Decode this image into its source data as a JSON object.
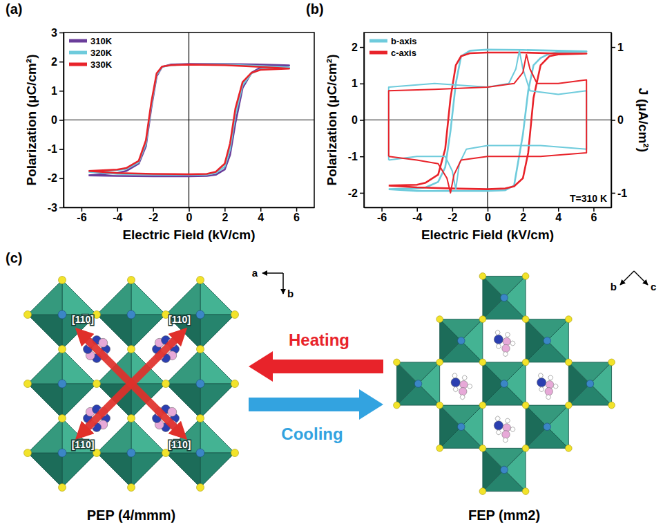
{
  "chart_data": [
    {
      "type": "line",
      "panel_label": "(a)",
      "x_label": "Electric Field (kV/cm)",
      "y_label": "Polarization (μC/cm²)",
      "xlim": [
        -7,
        7
      ],
      "xticks": [
        -6,
        -4,
        -2,
        0,
        2,
        4,
        6
      ],
      "ylim": [
        -3,
        3
      ],
      "yticks": [
        -3,
        -2,
        -1,
        0,
        1,
        2,
        3
      ],
      "legend": "upper left",
      "x": [
        -5.6,
        -4,
        -2,
        0,
        1,
        1.5,
        2,
        2.3,
        2.6,
        3,
        3.5,
        4,
        5.6,
        4,
        2,
        0,
        -1,
        -1.5,
        -1.8,
        -2.1,
        -2.4,
        -2.8,
        -3.5,
        -4,
        -5.6
      ],
      "series": [
        {
          "name": "310K",
          "color": "#6a3d9a",
          "values": [
            -1.9,
            -1.92,
            -1.93,
            -1.93,
            -1.92,
            -1.88,
            -1.7,
            -1.2,
            -0.1,
            1.1,
            1.62,
            1.8,
            1.87,
            1.9,
            1.92,
            1.92,
            1.9,
            1.82,
            1.5,
            0.4,
            -0.9,
            -1.5,
            -1.75,
            -1.82,
            -1.9
          ]
        },
        {
          "name": "320K",
          "color": "#6ecbdc",
          "values": [
            -1.78,
            -1.85,
            -1.87,
            -1.88,
            -1.87,
            -1.82,
            -1.6,
            -1.0,
            0.2,
            1.2,
            1.6,
            1.74,
            1.8,
            1.85,
            1.9,
            1.9,
            1.88,
            1.82,
            1.55,
            0.5,
            -0.8,
            -1.45,
            -1.68,
            -1.72,
            -1.78
          ]
        },
        {
          "name": "330K",
          "color": "#e8232a",
          "values": [
            -1.75,
            -1.82,
            -1.85,
            -1.86,
            -1.85,
            -1.78,
            -1.5,
            -0.8,
            0.4,
            1.3,
            1.62,
            1.72,
            1.76,
            1.82,
            1.88,
            1.9,
            1.88,
            1.83,
            1.6,
            0.6,
            -0.7,
            -1.4,
            -1.65,
            -1.7,
            -1.75
          ]
        }
      ]
    },
    {
      "type": "line",
      "panel_label": "(b)",
      "x_label": "Electric Field (kV/cm)",
      "y_label": "Polarization (μC/cm²)",
      "y2_label": "J (μA/cm²)",
      "annotation": "T=310 K",
      "xlim": [
        -7,
        7
      ],
      "xticks": [
        -6,
        -4,
        -2,
        0,
        2,
        4,
        6
      ],
      "ylim": [
        -2.4,
        2.4
      ],
      "yticks": [
        -2,
        -1,
        0,
        1,
        2
      ],
      "y2lim": [
        -1.2,
        1.2
      ],
      "y2ticks": [
        -1,
        0,
        1
      ],
      "legend": "upper left",
      "series": [
        {
          "name": "b-axis",
          "color": "#6ecbdc",
          "x": [
            -5.6,
            -4,
            -2,
            0,
            1,
            1.5,
            2,
            2.3,
            2.6,
            3,
            3.5,
            4,
            5.6,
            4,
            2,
            0,
            -1,
            -1.5,
            -1.8,
            -2.1,
            -2.4,
            -2.8,
            -3.5,
            -4,
            -5.6
          ],
          "values": [
            -1.9,
            -1.95,
            -1.95,
            -1.95,
            -1.93,
            -1.8,
            -0.4,
            0.8,
            1.5,
            1.7,
            1.82,
            1.86,
            1.88,
            1.9,
            1.92,
            1.93,
            1.9,
            1.75,
            1.0,
            -0.3,
            -1.3,
            -1.7,
            -1.85,
            -1.88,
            -1.9
          ]
        },
        {
          "name": "c-axis",
          "color": "#e8232a",
          "x": [
            -5.6,
            -4,
            -2,
            0,
            1,
            1.5,
            2,
            2.3,
            2.6,
            3,
            3.5,
            4,
            5.6,
            4,
            2,
            0,
            -1,
            -1.5,
            -1.8,
            -2.1,
            -2.4,
            -2.8,
            -3.5,
            -4,
            -5.6
          ],
          "values": [
            -1.8,
            -1.85,
            -1.88,
            -1.9,
            -1.88,
            -1.82,
            -1.6,
            -0.9,
            0.6,
            1.5,
            1.75,
            1.8,
            1.82,
            1.82,
            1.85,
            1.85,
            1.83,
            1.75,
            1.5,
            0.6,
            -0.8,
            -1.5,
            -1.72,
            -1.78,
            -1.8
          ]
        },
        {
          "color": "#6ecbdc",
          "axis": "y2",
          "x": [
            -5.6,
            -5.6,
            -3,
            0,
            1.2,
            1.6,
            1.8,
            2.0,
            2.4,
            4,
            5.6,
            5.6,
            3,
            0,
            -1.2,
            -1.6,
            -1.8,
            -2.0,
            -2.4,
            -4,
            -5.6
          ],
          "values": [
            -0.55,
            0.45,
            0.5,
            0.45,
            0.5,
            0.7,
            0.95,
            0.7,
            0.4,
            0.35,
            0.4,
            -0.4,
            -0.35,
            -0.35,
            -0.4,
            -0.6,
            -0.95,
            -0.7,
            -0.5,
            -0.5,
            -0.55
          ]
        },
        {
          "color": "#e8232a",
          "axis": "y2",
          "x": [
            -5.6,
            -5.6,
            -3,
            0,
            1.5,
            2.0,
            2.2,
            2.4,
            2.8,
            4,
            5.6,
            5.6,
            3,
            0,
            -1.5,
            -1.9,
            -2.1,
            -2.3,
            -2.8,
            -4,
            -5.6
          ],
          "values": [
            -0.5,
            0.4,
            0.42,
            0.45,
            0.5,
            0.65,
            0.9,
            0.7,
            0.5,
            0.5,
            0.55,
            -0.45,
            -0.5,
            -0.5,
            -0.55,
            -0.75,
            -1.0,
            -0.8,
            -0.6,
            -0.55,
            -0.5
          ]
        }
      ]
    }
  ],
  "diagram": {
    "panel_label": "(c)",
    "left": {
      "caption": "PEP (4/mmm)",
      "axes": [
        "a",
        "b"
      ],
      "directions": [
        "[11̅0]",
        "[110]",
        "[1̅1̅0]",
        "[1̅10]"
      ]
    },
    "right": {
      "caption": "FEP (mm2)",
      "axes": [
        "b",
        "c"
      ]
    },
    "transitions": [
      "Heating",
      "Cooling"
    ]
  }
}
